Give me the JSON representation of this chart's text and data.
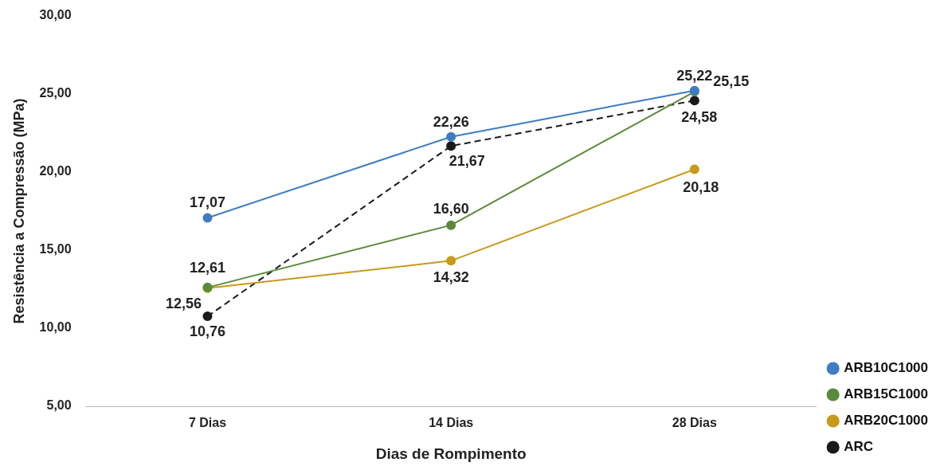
{
  "chart_data": {
    "type": "line",
    "xlabel": "Dias de Rompimento",
    "ylabel": "Resistência a Compressão (MPa)",
    "categories": [
      "7 Dias",
      "14 Dias",
      "28 Dias"
    ],
    "series": [
      {
        "name": "ARB10C1000",
        "color": "#3e7cc4",
        "values": [
          17.07,
          22.26,
          25.22
        ],
        "value_labels": [
          "17,07",
          "22,26",
          "25,22"
        ]
      },
      {
        "name": "ARB15C1000",
        "color": "#5a8a3a",
        "values": [
          12.61,
          16.6,
          25.15
        ],
        "value_labels": [
          "12,61",
          "16,60",
          "25,15"
        ]
      },
      {
        "name": "ARB20C1000",
        "color": "#c79a18",
        "values": [
          12.56,
          14.32,
          20.18
        ],
        "value_labels": [
          "12,56",
          "14,32",
          "20,18"
        ]
      },
      {
        "name": "ARC",
        "color": "#1a1a1a",
        "values": [
          10.76,
          21.67,
          24.58
        ],
        "value_labels": [
          "10,76",
          "21,67",
          "24,58"
        ],
        "line_style": "dashed"
      }
    ],
    "ylim": [
      5,
      30
    ],
    "yticks": [
      {
        "value": 5,
        "label": "5,00"
      },
      {
        "value": 10,
        "label": "10,00"
      },
      {
        "value": 15,
        "label": "15,00"
      },
      {
        "value": 20,
        "label": "20,00"
      },
      {
        "value": 25,
        "label": "25,00"
      },
      {
        "value": 30,
        "label": "30,00"
      }
    ],
    "grid": false,
    "legend": "bottom right",
    "marker": "circle",
    "line_style": "solid"
  }
}
